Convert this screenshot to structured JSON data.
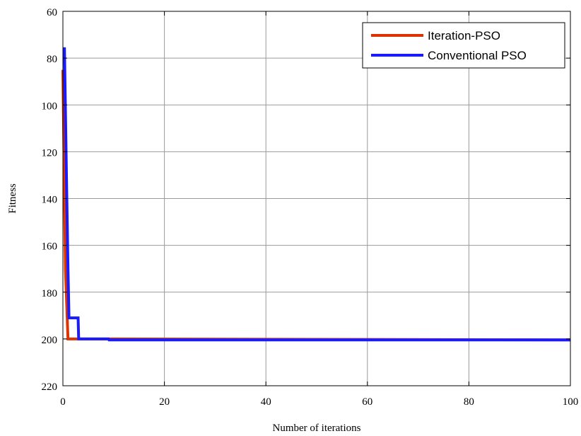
{
  "chart_data": {
    "type": "line",
    "title": "",
    "xlabel": "Number of iterations",
    "ylabel": "Fitness",
    "xlim": [
      0,
      100
    ],
    "ylim": [
      60,
      220
    ],
    "y_reversed": true,
    "xticks": [
      0,
      20,
      40,
      60,
      80,
      100
    ],
    "yticks": [
      60,
      80,
      100,
      120,
      140,
      160,
      180,
      200,
      220
    ],
    "grid": true,
    "legend_position": "top-right",
    "series": [
      {
        "name": "Iteration-PSO",
        "color": "#dd3300",
        "x": [
          0,
          0.5,
          1,
          9,
          100
        ],
        "y": [
          85,
          170,
          200,
          200,
          200.4
        ]
      },
      {
        "name": "Conventional PSO",
        "color": "#1a1aff",
        "x": [
          0,
          0.3,
          0.7,
          1,
          1.2,
          3,
          3.1,
          9,
          9.1,
          100
        ],
        "y": [
          76,
          76,
          130,
          170,
          191,
          191,
          200,
          200,
          200.4,
          200.4
        ]
      }
    ]
  }
}
